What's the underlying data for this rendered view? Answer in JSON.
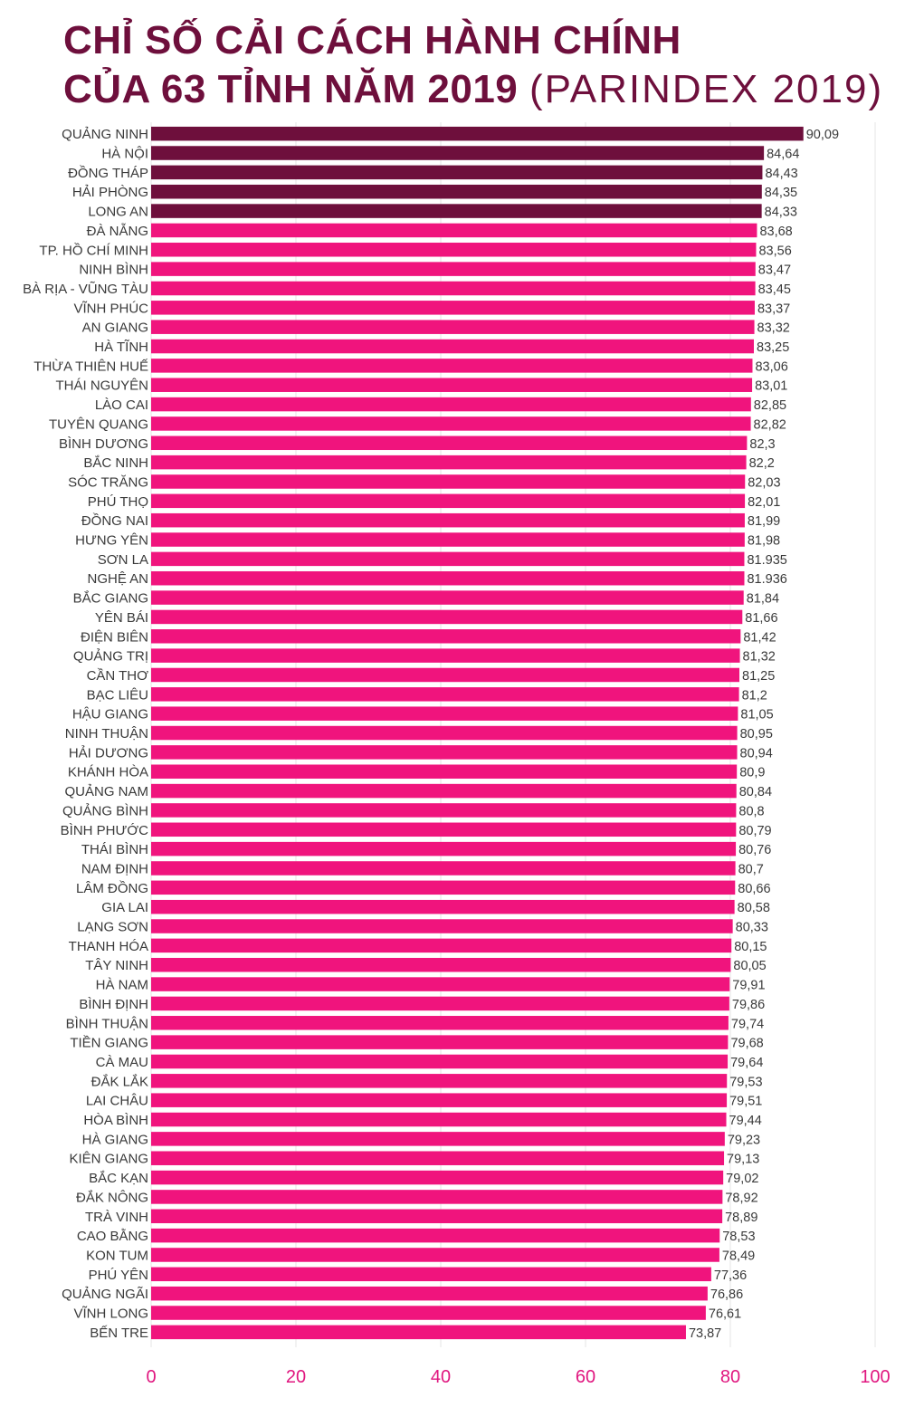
{
  "header": {
    "title_line1": "CHỈ SỐ CẢI CÁCH HÀNH CHÍNH",
    "title_line2": "CỦA 63 TỈNH NĂM 2019",
    "subtitle": "(PARINDEX 2019)"
  },
  "colors": {
    "title": "#6e0f3c",
    "top5_bar": "#6e0f3c",
    "bar": "#f0147d",
    "tick_label": "#e0167f",
    "grid": "#e6e6e6"
  },
  "chart_data": {
    "type": "bar",
    "orientation": "horizontal",
    "title": "CHỈ SỐ CẢI CÁCH HÀNH CHÍNH CỦA 63 TỈNH NĂM 2019 (PARINDEX 2019)",
    "xlim": [
      0,
      100
    ],
    "x_ticks": [
      "0",
      "20",
      "40",
      "60",
      "80",
      "100"
    ],
    "highlighted_count": 5,
    "grid": true,
    "categories": [
      "QUẢNG NINH",
      "HÀ NỘI",
      "ĐỒNG THÁP",
      "HẢI PHÒNG",
      "LONG AN",
      "ĐÀ NẴNG",
      "TP. HỒ CHÍ MINH",
      "NINH BÌNH",
      "BÀ RỊA - VŨNG TÀU",
      "VĨNH PHÚC",
      "AN GIANG",
      "HÀ TĨNH",
      "THỪA THIÊN HUẾ",
      "THÁI NGUYÊN",
      "LÀO CAI",
      "TUYÊN QUANG",
      "BÌNH DƯƠNG",
      "BẮC NINH",
      "SÓC TRĂNG",
      "PHÚ THỌ",
      "ĐỒNG NAI",
      "HƯNG YÊN",
      "SƠN LA",
      "NGHỆ AN",
      "BẮC GIANG",
      "YÊN BÁI",
      "ĐIỆN BIÊN",
      "QUẢNG TRỊ",
      "CẦN THƠ",
      "BẠC LIÊU",
      "HẬU GIANG",
      "NINH THUẬN",
      "HẢI DƯƠNG",
      "KHÁNH HÒA",
      "QUẢNG NAM",
      "QUẢNG BÌNH",
      "BÌNH PHƯỚC",
      "THÁI BÌNH",
      "NAM ĐỊNH",
      "LÂM ĐỒNG",
      "GIA LAI",
      "LẠNG SƠN",
      "THANH HÓA",
      "TÂY NINH",
      "HÀ NAM",
      "BÌNH ĐỊNH",
      "BÌNH THUẬN",
      "TIỀN GIANG",
      "CÀ MAU",
      "ĐẮK LẮK",
      "LAI CHÂU",
      "HÒA BÌNH",
      "HÀ GIANG",
      "KIÊN GIANG",
      "BẮC KẠN",
      "ĐẮK NÔNG",
      "TRÀ VINH",
      "CAO BẰNG",
      "KON TUM",
      "PHÚ YÊN",
      "QUẢNG NGÃI",
      "VĨNH LONG",
      "BẾN TRE"
    ],
    "values": [
      90.09,
      84.64,
      84.43,
      84.35,
      84.33,
      83.68,
      83.56,
      83.47,
      83.45,
      83.37,
      83.32,
      83.25,
      83.06,
      83.01,
      82.85,
      82.82,
      82.3,
      82.2,
      82.03,
      82.01,
      81.99,
      81.98,
      81.935,
      81.936,
      81.84,
      81.66,
      81.42,
      81.32,
      81.25,
      81.2,
      81.05,
      80.95,
      80.94,
      80.9,
      80.84,
      80.8,
      80.79,
      80.76,
      80.7,
      80.66,
      80.58,
      80.33,
      80.15,
      80.05,
      79.91,
      79.86,
      79.74,
      79.68,
      79.64,
      79.53,
      79.51,
      79.44,
      79.23,
      79.13,
      79.02,
      78.92,
      78.89,
      78.53,
      78.49,
      77.36,
      76.86,
      76.61,
      73.87
    ],
    "value_labels": [
      "90,09",
      "84,64",
      "84,43",
      "84,35",
      "84,33",
      "83,68",
      "83,56",
      "83,47",
      "83,45",
      "83,37",
      "83,32",
      "83,25",
      "83,06",
      "83,01",
      "82,85",
      "82,82",
      "82,3",
      "82,2",
      "82,03",
      "82,01",
      "81,99",
      "81,98",
      "81.935",
      "81.936",
      "81,84",
      "81,66",
      "81,42",
      "81,32",
      "81,25",
      "81,2",
      "81,05",
      "80,95",
      "80,94",
      "80,9",
      "80,84",
      "80,8",
      "80,79",
      "80,76",
      "80,7",
      "80,66",
      "80,58",
      "80,33",
      "80,15",
      "80,05",
      "79,91",
      "79,86",
      "79,74",
      "79,68",
      "79,64",
      "79,53",
      "79,51",
      "79,44",
      "79,23",
      "79,13",
      "79,02",
      "78,92",
      "78,89",
      "78,53",
      "78,49",
      "77,36",
      "76,86",
      "76,61",
      "73,87"
    ]
  }
}
